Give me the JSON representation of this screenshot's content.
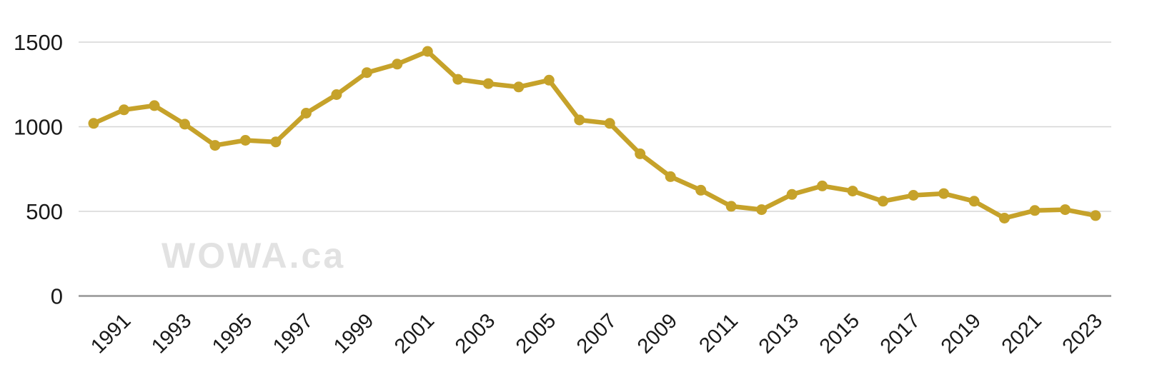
{
  "watermark": "WOWA.ca",
  "colors": {
    "line": "#C6A22A",
    "marker": "#C6A22A",
    "gridline": "#D6D6D6",
    "axis_line": "#9E9E9E",
    "tick_label": "#191919",
    "watermark": "#E2E2E2",
    "background": "#FFFFFF"
  },
  "chart_data": {
    "type": "line",
    "x": [
      1990,
      1991,
      1992,
      1993,
      1994,
      1995,
      1996,
      1997,
      1998,
      1999,
      2000,
      2001,
      2002,
      2003,
      2004,
      2005,
      2006,
      2007,
      2008,
      2009,
      2010,
      2011,
      2012,
      2013,
      2014,
      2015,
      2016,
      2017,
      2018,
      2019,
      2020,
      2021,
      2022,
      2023
    ],
    "values": [
      1020,
      1100,
      1125,
      1015,
      890,
      920,
      910,
      1080,
      1190,
      1320,
      1370,
      1445,
      1280,
      1255,
      1235,
      1275,
      1040,
      1020,
      840,
      705,
      625,
      530,
      510,
      600,
      650,
      620,
      560,
      595,
      605,
      560,
      460,
      505,
      510,
      475
    ],
    "title": "",
    "xlabel": "",
    "ylabel": "",
    "ylim": [
      0,
      1500
    ],
    "yticks": [
      0,
      500,
      1000,
      1500
    ],
    "ytick_labels": [
      "0",
      "500",
      "1000",
      "1500"
    ],
    "xtick_labels": [
      "1991",
      "1993",
      "1995",
      "1997",
      "1999",
      "2001",
      "2003",
      "2005",
      "2007",
      "2009",
      "2011",
      "2013",
      "2015",
      "2017",
      "2019",
      "2021",
      "2023"
    ],
    "grid": true,
    "legend": false,
    "marker": "circle"
  }
}
